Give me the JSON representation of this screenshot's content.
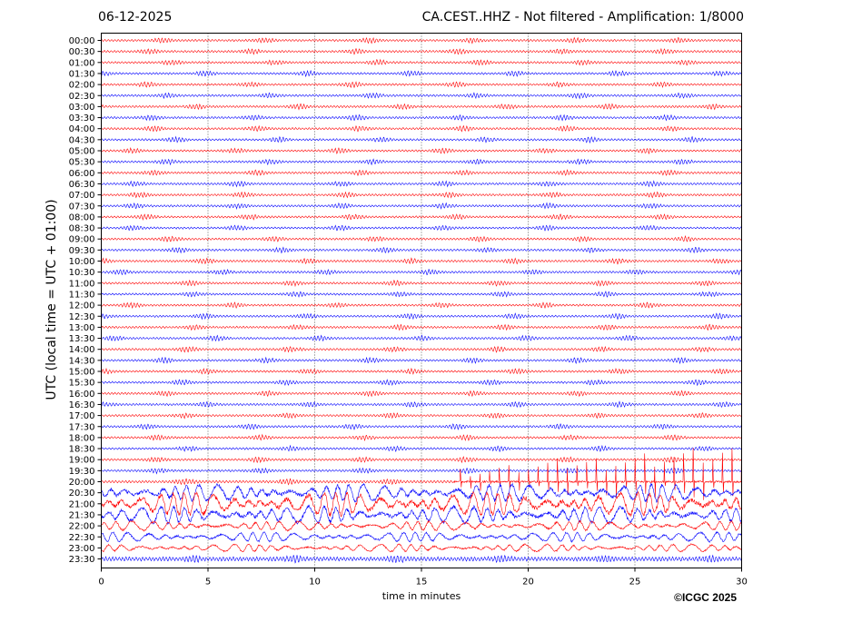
{
  "header": {
    "date": "06-12-2025",
    "title": "CA.CEST..HHZ - Not filtered - Amplification: 1/8000"
  },
  "footer": {
    "copyright": "©ICGC 2025"
  },
  "chart_data": {
    "type": "line",
    "xlabel": "time in minutes",
    "ylabel": "UTC (local time = UTC + 01:00)",
    "xlim": [
      0,
      30
    ],
    "x_ticks": [
      "0",
      "5",
      "10",
      "15",
      "20",
      "25",
      "30"
    ],
    "grid": "vertical dotted lines at 5-minute intervals",
    "row_labels": [
      "00:00",
      "00:30",
      "01:00",
      "01:30",
      "02:00",
      "02:30",
      "03:00",
      "03:30",
      "04:00",
      "04:30",
      "05:00",
      "05:30",
      "06:00",
      "06:30",
      "07:00",
      "07:30",
      "08:00",
      "08:30",
      "09:00",
      "09:30",
      "10:00",
      "10:30",
      "11:00",
      "11:30",
      "12:00",
      "12:30",
      "13:00",
      "13:30",
      "14:00",
      "14:30",
      "15:00",
      "15:30",
      "16:00",
      "16:30",
      "17:00",
      "17:30",
      "18:00",
      "18:30",
      "19:00",
      "19:30",
      "20:00",
      "20:30",
      "21:00",
      "21:30",
      "22:00",
      "22:30",
      "23:00",
      "23:30"
    ],
    "trace_colors": [
      "#ff0000",
      "#0000ff"
    ],
    "trace_color_pattern": "alternating per row: red, red, red, blue, ... as shown",
    "row_colors": [
      "#ff0000",
      "#ff0000",
      "#ff0000",
      "#0000ff",
      "#ff0000",
      "#0000ff",
      "#ff0000",
      "#0000ff",
      "#ff0000",
      "#0000ff",
      "#ff0000",
      "#0000ff",
      "#ff0000",
      "#0000ff",
      "#ff0000",
      "#0000ff",
      "#ff0000",
      "#0000ff",
      "#ff0000",
      "#0000ff",
      "#ff0000",
      "#0000ff",
      "#ff0000",
      "#0000ff",
      "#ff0000",
      "#0000ff",
      "#ff0000",
      "#0000ff",
      "#ff0000",
      "#0000ff",
      "#ff0000",
      "#0000ff",
      "#ff0000",
      "#0000ff",
      "#ff0000",
      "#0000ff",
      "#ff0000",
      "#0000ff",
      "#ff0000",
      "#0000ff",
      "#ff0000",
      "#0000ff",
      "#ff0000",
      "#0000ff",
      "#ff0000",
      "#0000ff",
      "#ff0000",
      "#0000ff"
    ],
    "noise_level": "low background noise on all rows from 00:00 to 19:30",
    "active_rows": {
      "20:00": "large spikes from ~17 min onward",
      "20:30": "strong oscillation throughout",
      "21:00": "strong oscillation throughout",
      "21:30": "strong oscillation throughout",
      "22:00": "moderate oscillation",
      "22:30": "moderate oscillation",
      "23:00": "moderate oscillation",
      "23:30": "low oscillation"
    }
  }
}
